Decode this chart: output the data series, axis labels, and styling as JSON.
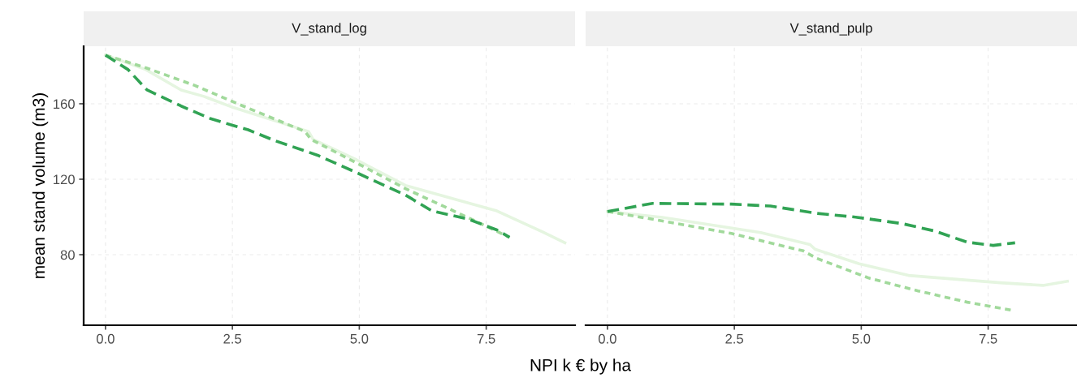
{
  "chart_data": [
    {
      "type": "line",
      "title": "V_stand_log",
      "ylabel": "mean stand volume (m3)",
      "xlabel": "NPI k € by ha",
      "xlim": [
        -0.43,
        9.25
      ],
      "xticks": [
        {
          "value": 0,
          "label": "0.0"
        },
        {
          "value": 2.5,
          "label": "2.5"
        },
        {
          "value": 5,
          "label": "5.0"
        },
        {
          "value": 7.5,
          "label": "7.5"
        }
      ],
      "ylim": [
        42.6,
        190.5
      ],
      "yticks": [
        80,
        120,
        160
      ],
      "grid": true,
      "series": [
        {
          "color": "#e5f5e0",
          "line_style": "solid",
          "x": [
            0,
            0.79,
            1.49,
            1.94,
            2.52,
            4.0,
            4.09,
            4.95,
            5.91,
            7.71,
            8.6,
            9.05
          ],
          "values": [
            185.8,
            178.2,
            167.3,
            163.9,
            158.0,
            145.3,
            141.1,
            130.2,
            116.7,
            103.2,
            92.2,
            86.3
          ]
        },
        {
          "color": "#a1d99b",
          "line_style": "dotted",
          "x": [
            0,
            0.79,
            1.75,
            2.71,
            3.93,
            4.05,
            5.02,
            5.91,
            7.13,
            7.96
          ],
          "values": [
            185.8,
            179.1,
            169.8,
            158.8,
            145.3,
            141.1,
            127.6,
            115.0,
            99.8,
            89.2
          ]
        },
        {
          "color": "#31a354",
          "line_style": "dashed",
          "x": [
            0,
            0.44,
            0.82,
            1.49,
            2.07,
            2.49,
            2.81,
            3.35,
            4.18,
            4.88,
            5.91,
            6.43,
            7.13,
            7.71,
            7.96
          ],
          "values": [
            185.8,
            178.2,
            167.3,
            158.8,
            152.1,
            148.7,
            146.2,
            140.3,
            132.7,
            124.3,
            111.6,
            103.2,
            99.0,
            93.1,
            89.2
          ]
        }
      ]
    },
    {
      "type": "line",
      "title": "V_stand_pulp",
      "xlim": [
        -0.43,
        9.25
      ],
      "xticks": [
        {
          "value": 0,
          "label": "0.0"
        },
        {
          "value": 2.5,
          "label": "2.5"
        },
        {
          "value": 5,
          "label": "5.0"
        },
        {
          "value": 7.5,
          "label": "7.5"
        }
      ],
      "ylim": [
        42.6,
        190.5
      ],
      "yticks": [
        80,
        120,
        160
      ],
      "tick_labels": "x",
      "grid": true,
      "series": [
        {
          "color": "#e5f5e0",
          "line_style": "solid",
          "x": [
            0,
            1.08,
            3.02,
            3.99,
            4.09,
            4.96,
            5.93,
            7.74,
            8.58,
            9.06
          ],
          "values": [
            102.9,
            99.8,
            91.7,
            85.4,
            82.9,
            75.2,
            69.0,
            65.1,
            63.7,
            65.9
          ]
        },
        {
          "color": "#a1d99b",
          "line_style": "dotted",
          "x": [
            0,
            0.95,
            2.44,
            3.86,
            4.12,
            5.15,
            6.12,
            7.09,
            7.96
          ],
          "values": [
            102.9,
            98.5,
            91.3,
            82.0,
            78.1,
            67.6,
            60.8,
            54.8,
            50.6
          ]
        },
        {
          "color": "#31a354",
          "line_style": "dashed",
          "x": [
            0,
            0.89,
            2.44,
            3.21,
            4.12,
            4.89,
            5.8,
            6.44,
            7.09,
            7.6,
            8.03
          ],
          "values": [
            102.9,
            107.2,
            106.8,
            105.8,
            101.9,
            99.9,
            96.5,
            92.6,
            86.6,
            84.9,
            86.3
          ]
        }
      ]
    }
  ]
}
